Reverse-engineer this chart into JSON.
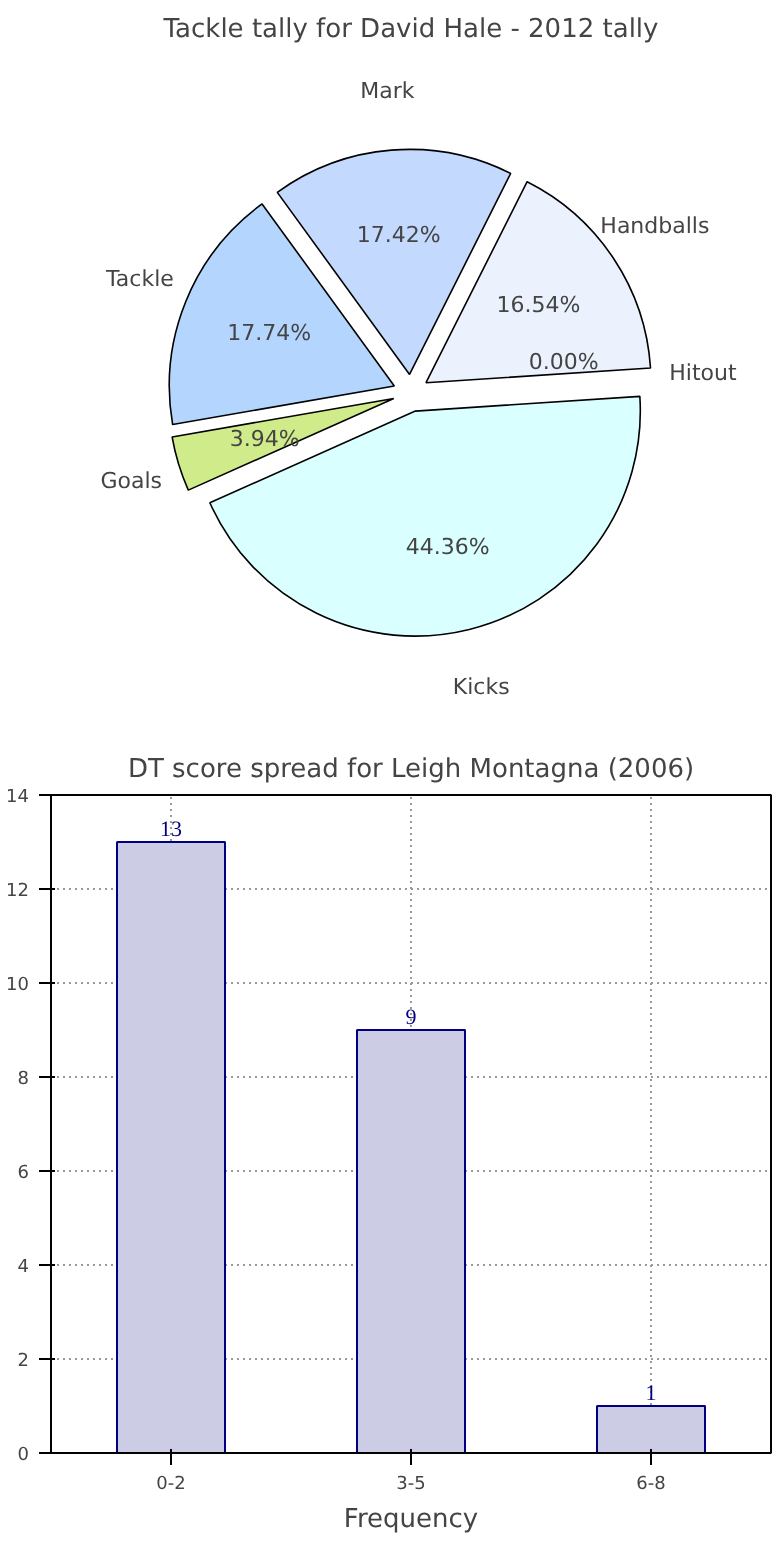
{
  "chart_data": [
    {
      "type": "pie",
      "title": "Tackle tally for David Hale - 2012 tally",
      "categories": [
        "Mark",
        "Handballs",
        "Hitout",
        "Kicks",
        "Goals",
        "Tackle"
      ],
      "values": [
        17.42,
        16.54,
        0.0,
        44.36,
        3.94,
        17.74
      ],
      "colors": [
        "#c4d9fe",
        "#ebf2fe",
        "#f2f2f2",
        "#d9ffff",
        "#d0eb8a",
        "#b3d5fe"
      ],
      "value_labels": [
        "17.42%",
        "16.54%",
        "0.00%",
        "44.36%",
        "3.94%",
        "17.74%"
      ]
    },
    {
      "type": "bar",
      "title": "DT score spread for Leigh Montagna (2006)",
      "xlabel": "Frequency",
      "categories": [
        "0-2",
        "3-5",
        "6-8"
      ],
      "values": [
        13,
        9,
        1
      ],
      "color": "#ccccE5",
      "ylim": [
        0,
        14
      ],
      "yticks": [
        0,
        2,
        4,
        6,
        8,
        10,
        12,
        14
      ],
      "grid": true,
      "data_labels": true
    }
  ]
}
